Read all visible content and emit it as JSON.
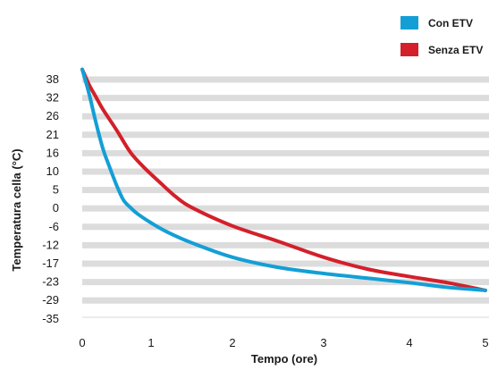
{
  "chart_data": {
    "type": "line",
    "xlabel": "Tempo (ore)",
    "ylabel": "Temperatura cella (°C)",
    "x_ticks": [
      "0",
      "1",
      "2",
      "3",
      "4",
      "5"
    ],
    "y_ticks": [
      "38",
      "32",
      "26",
      "21",
      "16",
      "10",
      "5",
      "0",
      "-6",
      "-12",
      "-17",
      "-23",
      "-29",
      "-35"
    ],
    "xlim": [
      0,
      5
    ],
    "grid": true,
    "legend": "top-right",
    "series": [
      {
        "name": "Con ETV",
        "color": "#139fd6",
        "points": [
          [
            0,
            41
          ],
          [
            0.1,
            33
          ],
          [
            0.2,
            24
          ],
          [
            0.3,
            17
          ],
          [
            0.4,
            11
          ],
          [
            0.5,
            6
          ],
          [
            0.6,
            2
          ],
          [
            0.7,
            0
          ],
          [
            0.8,
            -2
          ],
          [
            1,
            -5
          ],
          [
            1.2,
            -8
          ],
          [
            1.5,
            -11.5
          ],
          [
            2,
            -15.5
          ],
          [
            2.5,
            -18.5
          ],
          [
            3,
            -20.5
          ],
          [
            3.5,
            -22
          ],
          [
            4,
            -23.5
          ],
          [
            4.5,
            -25
          ],
          [
            5,
            -26
          ]
        ]
      },
      {
        "name": "Senza ETV",
        "color": "#d3202a",
        "points": [
          [
            0,
            41
          ],
          [
            0.1,
            36
          ],
          [
            0.2,
            32
          ],
          [
            0.3,
            28
          ],
          [
            0.5,
            22
          ],
          [
            0.7,
            16
          ],
          [
            0.9,
            11
          ],
          [
            1.1,
            7
          ],
          [
            1.3,
            3
          ],
          [
            1.5,
            0
          ],
          [
            2,
            -6
          ],
          [
            2.5,
            -11
          ],
          [
            3,
            -15.5
          ],
          [
            3.5,
            -19
          ],
          [
            4,
            -21.5
          ],
          [
            4.5,
            -23.5
          ],
          [
            5,
            -26
          ]
        ]
      }
    ]
  }
}
